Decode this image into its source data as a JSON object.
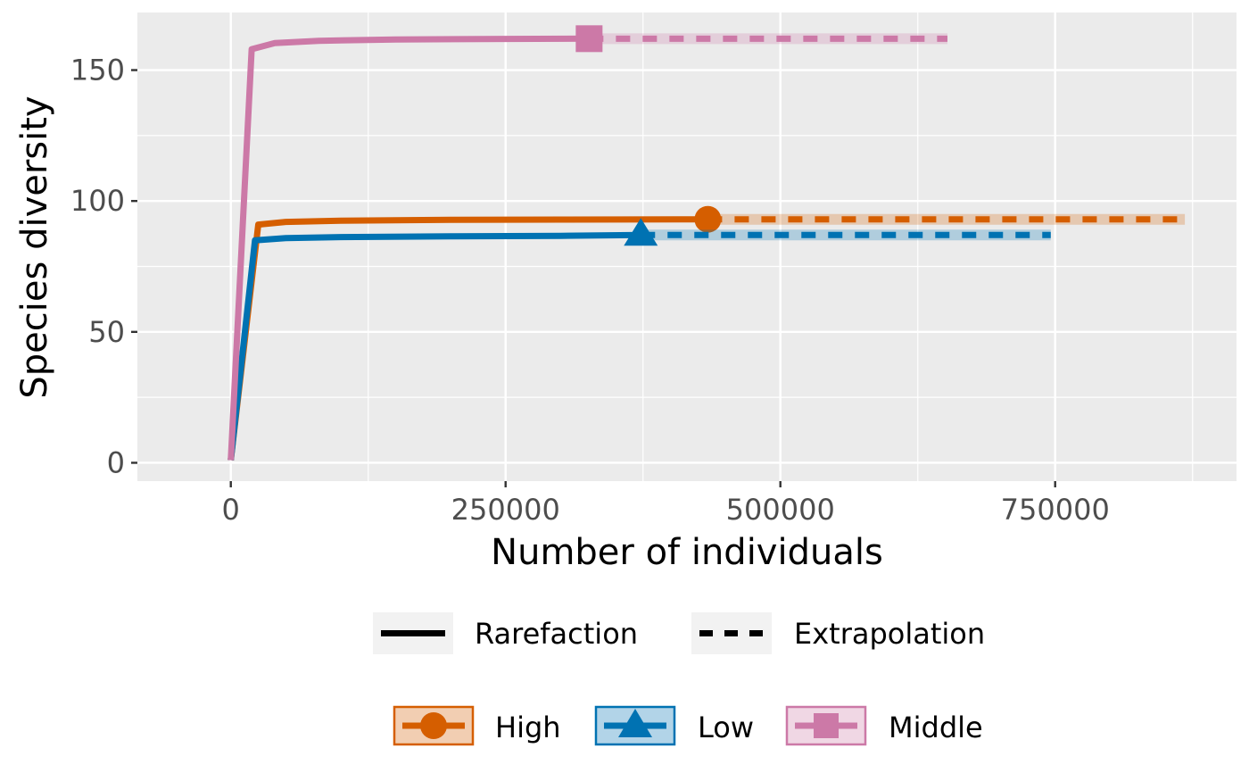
{
  "chart_data": {
    "type": "line",
    "xlabel": "Number of individuals",
    "ylabel": "Species diversity",
    "xlim": [
      -85000,
      915000
    ],
    "ylim": [
      -7,
      172
    ],
    "x_ticks": [
      0,
      250000,
      500000,
      750000
    ],
    "x_tick_labels": [
      "0",
      "250000",
      "500000",
      "750000"
    ],
    "y_ticks": [
      0,
      50,
      100,
      150
    ],
    "y_tick_labels": [
      "0",
      "50",
      "100",
      "150"
    ],
    "grid": true,
    "legend_position": "bottom",
    "linetype_legend": [
      {
        "label": "Rarefaction",
        "style": "solid"
      },
      {
        "label": "Extrapolation",
        "style": "dashed"
      }
    ],
    "series": [
      {
        "name": "High",
        "color": "#D55E00",
        "marker": "circle",
        "rarefaction": {
          "x": [
            0,
            25000,
            50000,
            100000,
            200000,
            300000,
            434000
          ],
          "y": [
            1,
            91,
            92,
            92.5,
            92.8,
            92.9,
            93
          ]
        },
        "observed": {
          "x": 434000,
          "y": 93
        },
        "extrapolation": {
          "x": [
            434000,
            868000
          ],
          "y": [
            93,
            93
          ]
        }
      },
      {
        "name": "Low",
        "color": "#0072B2",
        "marker": "triangle",
        "rarefaction": {
          "x": [
            0,
            22000,
            50000,
            100000,
            200000,
            300000,
            373000
          ],
          "y": [
            1,
            85,
            85.8,
            86.2,
            86.5,
            86.7,
            87
          ]
        },
        "observed": {
          "x": 373000,
          "y": 87
        },
        "extrapolation": {
          "x": [
            373000,
            746000
          ],
          "y": [
            87,
            87
          ]
        }
      },
      {
        "name": "Middle",
        "color": "#CC79A7",
        "marker": "square",
        "rarefaction": {
          "x": [
            0,
            19000,
            40000,
            80000,
            150000,
            250000,
            326000
          ],
          "y": [
            1,
            158,
            160.3,
            161.2,
            161.7,
            161.9,
            162
          ]
        },
        "observed": {
          "x": 326000,
          "y": 162
        },
        "extrapolation": {
          "x": [
            326000,
            652000
          ],
          "y": [
            162,
            162
          ]
        }
      }
    ]
  }
}
